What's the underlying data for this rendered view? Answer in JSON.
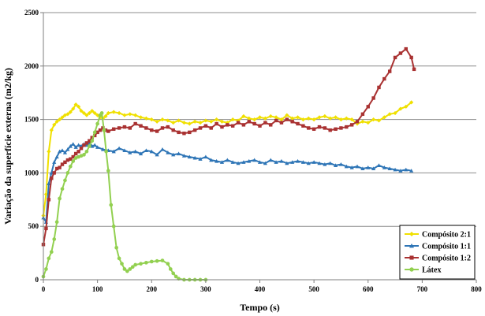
{
  "chart_data": {
    "type": "line",
    "title": "",
    "xlabel": "Tempo (s)",
    "ylabel": "Variação da superfície externa (m2/kg)",
    "xlim": [
      0,
      800
    ],
    "ylim": [
      0,
      2500
    ],
    "xticks": [
      0,
      100,
      200,
      300,
      400,
      500,
      600,
      700,
      800
    ],
    "yticks": [
      0,
      500,
      1000,
      1500,
      2000,
      2500
    ],
    "grid": "horizontal",
    "legend_position": "bottom-right",
    "series": [
      {
        "name": "Compósito 2:1",
        "color": "#f0e000",
        "marker": "diamond",
        "points": [
          [
            0,
            600
          ],
          [
            5,
            800
          ],
          [
            10,
            1200
          ],
          [
            15,
            1400
          ],
          [
            20,
            1450
          ],
          [
            25,
            1480
          ],
          [
            30,
            1500
          ],
          [
            35,
            1520
          ],
          [
            40,
            1540
          ],
          [
            45,
            1550
          ],
          [
            50,
            1570
          ],
          [
            55,
            1600
          ],
          [
            60,
            1640
          ],
          [
            65,
            1620
          ],
          [
            70,
            1580
          ],
          [
            75,
            1560
          ],
          [
            80,
            1540
          ],
          [
            85,
            1560
          ],
          [
            90,
            1580
          ],
          [
            95,
            1560
          ],
          [
            100,
            1540
          ],
          [
            105,
            1520
          ],
          [
            110,
            1510
          ],
          [
            115,
            1530
          ],
          [
            120,
            1560
          ],
          [
            130,
            1570
          ],
          [
            140,
            1560
          ],
          [
            150,
            1540
          ],
          [
            160,
            1550
          ],
          [
            170,
            1540
          ],
          [
            180,
            1520
          ],
          [
            190,
            1510
          ],
          [
            200,
            1500
          ],
          [
            210,
            1480
          ],
          [
            220,
            1500
          ],
          [
            230,
            1490
          ],
          [
            240,
            1470
          ],
          [
            250,
            1490
          ],
          [
            260,
            1470
          ],
          [
            270,
            1460
          ],
          [
            280,
            1480
          ],
          [
            290,
            1470
          ],
          [
            300,
            1490
          ],
          [
            310,
            1480
          ],
          [
            320,
            1500
          ],
          [
            330,
            1480
          ],
          [
            340,
            1470
          ],
          [
            350,
            1500
          ],
          [
            360,
            1490
          ],
          [
            370,
            1530
          ],
          [
            380,
            1510
          ],
          [
            390,
            1500
          ],
          [
            400,
            1520
          ],
          [
            410,
            1510
          ],
          [
            420,
            1530
          ],
          [
            430,
            1520
          ],
          [
            440,
            1500
          ],
          [
            450,
            1540
          ],
          [
            460,
            1510
          ],
          [
            470,
            1520
          ],
          [
            480,
            1500
          ],
          [
            490,
            1510
          ],
          [
            500,
            1500
          ],
          [
            510,
            1520
          ],
          [
            520,
            1530
          ],
          [
            530,
            1510
          ],
          [
            540,
            1520
          ],
          [
            550,
            1500
          ],
          [
            560,
            1510
          ],
          [
            570,
            1500
          ],
          [
            580,
            1460
          ],
          [
            590,
            1480
          ],
          [
            600,
            1470
          ],
          [
            610,
            1500
          ],
          [
            620,
            1490
          ],
          [
            630,
            1520
          ],
          [
            640,
            1550
          ],
          [
            650,
            1560
          ],
          [
            660,
            1600
          ],
          [
            670,
            1620
          ],
          [
            680,
            1660
          ]
        ]
      },
      {
        "name": "Compósito 1:1",
        "color": "#2e75b6",
        "marker": "triangle",
        "points": [
          [
            0,
            580
          ],
          [
            5,
            540
          ],
          [
            10,
            900
          ],
          [
            15,
            1000
          ],
          [
            20,
            1100
          ],
          [
            25,
            1150
          ],
          [
            30,
            1200
          ],
          [
            35,
            1210
          ],
          [
            40,
            1190
          ],
          [
            45,
            1220
          ],
          [
            50,
            1250
          ],
          [
            55,
            1270
          ],
          [
            60,
            1240
          ],
          [
            65,
            1260
          ],
          [
            70,
            1250
          ],
          [
            75,
            1270
          ],
          [
            80,
            1260
          ],
          [
            85,
            1280
          ],
          [
            90,
            1250
          ],
          [
            95,
            1260
          ],
          [
            100,
            1240
          ],
          [
            110,
            1220
          ],
          [
            120,
            1210
          ],
          [
            130,
            1200
          ],
          [
            140,
            1230
          ],
          [
            150,
            1210
          ],
          [
            160,
            1190
          ],
          [
            170,
            1200
          ],
          [
            180,
            1180
          ],
          [
            190,
            1210
          ],
          [
            200,
            1200
          ],
          [
            210,
            1170
          ],
          [
            220,
            1220
          ],
          [
            230,
            1190
          ],
          [
            240,
            1170
          ],
          [
            250,
            1180
          ],
          [
            260,
            1160
          ],
          [
            270,
            1150
          ],
          [
            280,
            1140
          ],
          [
            290,
            1130
          ],
          [
            300,
            1150
          ],
          [
            310,
            1120
          ],
          [
            320,
            1110
          ],
          [
            330,
            1100
          ],
          [
            340,
            1120
          ],
          [
            350,
            1100
          ],
          [
            360,
            1090
          ],
          [
            370,
            1100
          ],
          [
            380,
            1110
          ],
          [
            390,
            1120
          ],
          [
            400,
            1100
          ],
          [
            410,
            1090
          ],
          [
            420,
            1120
          ],
          [
            430,
            1100
          ],
          [
            440,
            1110
          ],
          [
            450,
            1090
          ],
          [
            460,
            1100
          ],
          [
            470,
            1110
          ],
          [
            480,
            1100
          ],
          [
            490,
            1090
          ],
          [
            500,
            1100
          ],
          [
            510,
            1090
          ],
          [
            520,
            1080
          ],
          [
            530,
            1090
          ],
          [
            540,
            1070
          ],
          [
            550,
            1080
          ],
          [
            560,
            1060
          ],
          [
            570,
            1050
          ],
          [
            580,
            1060
          ],
          [
            590,
            1040
          ],
          [
            600,
            1050
          ],
          [
            610,
            1040
          ],
          [
            620,
            1070
          ],
          [
            630,
            1050
          ],
          [
            640,
            1040
          ],
          [
            650,
            1030
          ],
          [
            660,
            1020
          ],
          [
            670,
            1030
          ],
          [
            680,
            1020
          ]
        ]
      },
      {
        "name": "Compósito 1:2",
        "color": "#a93232",
        "marker": "square",
        "points": [
          [
            0,
            330
          ],
          [
            5,
            480
          ],
          [
            10,
            750
          ],
          [
            15,
            950
          ],
          [
            20,
            1000
          ],
          [
            25,
            1040
          ],
          [
            30,
            1050
          ],
          [
            35,
            1080
          ],
          [
            40,
            1100
          ],
          [
            45,
            1120
          ],
          [
            50,
            1130
          ],
          [
            55,
            1150
          ],
          [
            60,
            1180
          ],
          [
            65,
            1200
          ],
          [
            70,
            1230
          ],
          [
            75,
            1260
          ],
          [
            80,
            1280
          ],
          [
            85,
            1300
          ],
          [
            90,
            1330
          ],
          [
            95,
            1350
          ],
          [
            100,
            1380
          ],
          [
            105,
            1400
          ],
          [
            110,
            1420
          ],
          [
            115,
            1400
          ],
          [
            120,
            1390
          ],
          [
            130,
            1410
          ],
          [
            140,
            1420
          ],
          [
            150,
            1430
          ],
          [
            160,
            1420
          ],
          [
            170,
            1460
          ],
          [
            180,
            1440
          ],
          [
            190,
            1420
          ],
          [
            200,
            1400
          ],
          [
            210,
            1390
          ],
          [
            220,
            1420
          ],
          [
            230,
            1430
          ],
          [
            240,
            1400
          ],
          [
            250,
            1380
          ],
          [
            260,
            1370
          ],
          [
            270,
            1380
          ],
          [
            280,
            1400
          ],
          [
            290,
            1420
          ],
          [
            300,
            1440
          ],
          [
            310,
            1420
          ],
          [
            320,
            1460
          ],
          [
            330,
            1430
          ],
          [
            340,
            1450
          ],
          [
            350,
            1440
          ],
          [
            360,
            1470
          ],
          [
            370,
            1450
          ],
          [
            380,
            1480
          ],
          [
            390,
            1460
          ],
          [
            400,
            1440
          ],
          [
            410,
            1470
          ],
          [
            420,
            1450
          ],
          [
            430,
            1490
          ],
          [
            440,
            1470
          ],
          [
            450,
            1500
          ],
          [
            460,
            1480
          ],
          [
            470,
            1460
          ],
          [
            480,
            1440
          ],
          [
            490,
            1420
          ],
          [
            500,
            1410
          ],
          [
            510,
            1430
          ],
          [
            520,
            1420
          ],
          [
            530,
            1400
          ],
          [
            540,
            1410
          ],
          [
            550,
            1420
          ],
          [
            560,
            1430
          ],
          [
            570,
            1450
          ],
          [
            580,
            1480
          ],
          [
            590,
            1550
          ],
          [
            600,
            1620
          ],
          [
            610,
            1700
          ],
          [
            620,
            1800
          ],
          [
            630,
            1880
          ],
          [
            640,
            1950
          ],
          [
            650,
            2080
          ],
          [
            660,
            2120
          ],
          [
            670,
            2160
          ],
          [
            680,
            2080
          ],
          [
            685,
            1970
          ]
        ]
      },
      {
        "name": "Látex",
        "color": "#92d050",
        "marker": "circle",
        "points": [
          [
            0,
            30
          ],
          [
            5,
            100
          ],
          [
            10,
            200
          ],
          [
            15,
            260
          ],
          [
            20,
            380
          ],
          [
            25,
            540
          ],
          [
            30,
            760
          ],
          [
            35,
            850
          ],
          [
            40,
            930
          ],
          [
            45,
            1000
          ],
          [
            50,
            1060
          ],
          [
            55,
            1110
          ],
          [
            60,
            1140
          ],
          [
            65,
            1150
          ],
          [
            70,
            1160
          ],
          [
            75,
            1170
          ],
          [
            80,
            1200
          ],
          [
            85,
            1250
          ],
          [
            90,
            1300
          ],
          [
            95,
            1380
          ],
          [
            100,
            1460
          ],
          [
            105,
            1540
          ],
          [
            108,
            1560
          ],
          [
            112,
            1400
          ],
          [
            116,
            1200
          ],
          [
            120,
            1020
          ],
          [
            125,
            700
          ],
          [
            130,
            500
          ],
          [
            135,
            300
          ],
          [
            140,
            200
          ],
          [
            145,
            150
          ],
          [
            150,
            100
          ],
          [
            155,
            80
          ],
          [
            160,
            100
          ],
          [
            165,
            120
          ],
          [
            170,
            140
          ],
          [
            180,
            150
          ],
          [
            190,
            160
          ],
          [
            200,
            170
          ],
          [
            210,
            175
          ],
          [
            220,
            180
          ],
          [
            230,
            150
          ],
          [
            235,
            100
          ],
          [
            240,
            60
          ],
          [
            245,
            30
          ],
          [
            250,
            10
          ],
          [
            260,
            0
          ],
          [
            270,
            0
          ],
          [
            280,
            0
          ],
          [
            290,
            0
          ],
          [
            300,
            0
          ]
        ]
      }
    ]
  }
}
